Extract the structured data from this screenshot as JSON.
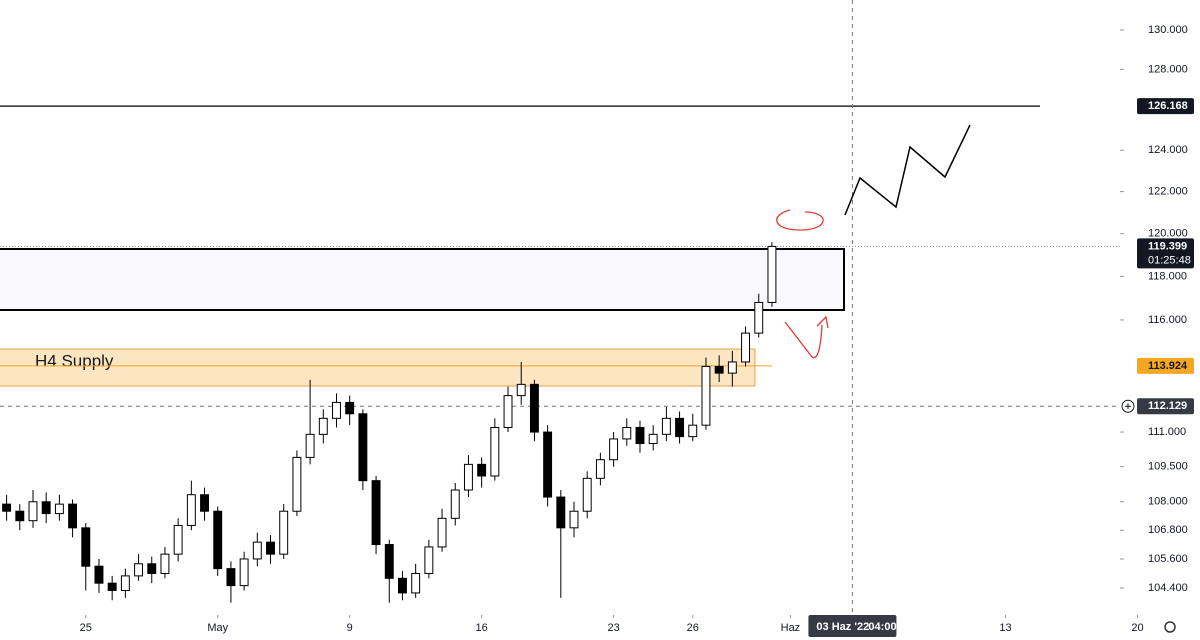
{
  "chart_data": {
    "type": "candlestick",
    "annotation": "H4 Supply",
    "up_color": "#ffffff",
    "down_color": "#000000",
    "open": [
      107.9,
      107.6,
      107.2,
      108.0,
      107.5,
      107.9,
      106.9,
      105.3,
      104.6,
      104.3,
      104.9,
      105.4,
      105.0,
      105.8,
      107.0,
      108.3,
      107.6,
      105.2,
      104.5,
      105.6,
      106.3,
      105.8,
      107.6,
      109.9,
      110.9,
      111.6,
      112.3,
      111.8,
      108.9,
      106.2,
      104.8,
      104.2,
      105.0,
      106.1,
      107.3,
      108.5,
      109.6,
      109.1,
      111.2,
      112.6,
      113.1,
      111.0,
      108.2,
      106.9,
      107.6,
      109.0,
      109.8,
      110.7,
      111.2,
      110.5,
      110.9,
      111.6,
      110.8,
      111.3,
      113.9,
      113.6,
      114.1,
      115.4,
      116.8
    ],
    "high": [
      108.3,
      107.9,
      108.5,
      108.4,
      108.3,
      108.1,
      107.1,
      105.6,
      104.9,
      105.2,
      105.8,
      105.7,
      106.1,
      107.3,
      108.9,
      108.6,
      107.8,
      105.5,
      105.9,
      106.7,
      106.6,
      107.9,
      110.2,
      113.3,
      112.0,
      112.7,
      112.6,
      112.0,
      109.1,
      106.4,
      105.1,
      105.4,
      106.4,
      107.7,
      108.8,
      110.0,
      109.9,
      111.6,
      113.0,
      114.1,
      113.3,
      111.3,
      108.5,
      108.0,
      109.3,
      110.1,
      111.0,
      111.6,
      111.5,
      111.3,
      112.1,
      111.9,
      111.8,
      114.3,
      114.4,
      114.6,
      115.7,
      117.2,
      119.6
    ],
    "low": [
      107.2,
      106.8,
      106.9,
      107.1,
      107.2,
      106.5,
      104.3,
      104.2,
      103.9,
      104.0,
      104.7,
      104.6,
      104.8,
      105.5,
      106.8,
      107.2,
      104.9,
      103.8,
      104.3,
      105.3,
      105.4,
      105.6,
      107.4,
      109.6,
      110.5,
      111.2,
      111.3,
      108.5,
      105.8,
      103.8,
      103.9,
      104.0,
      104.8,
      105.9,
      107.0,
      108.2,
      108.6,
      108.9,
      111.0,
      112.2,
      110.6,
      107.8,
      104.0,
      106.5,
      107.3,
      108.7,
      109.5,
      110.4,
      110.1,
      110.2,
      110.6,
      110.5,
      110.6,
      111.1,
      113.2,
      113.0,
      113.9,
      115.2,
      116.6
    ],
    "close": [
      107.6,
      107.2,
      108.0,
      107.5,
      107.9,
      106.9,
      105.3,
      104.6,
      104.3,
      104.9,
      105.4,
      105.0,
      105.8,
      107.0,
      108.3,
      107.6,
      105.2,
      104.5,
      105.6,
      106.3,
      105.8,
      107.6,
      109.9,
      110.9,
      111.6,
      112.3,
      111.8,
      108.9,
      106.2,
      104.8,
      104.2,
      105.0,
      106.1,
      107.3,
      108.5,
      109.6,
      109.1,
      111.2,
      112.6,
      113.1,
      111.0,
      108.2,
      106.9,
      107.6,
      109.0,
      109.8,
      110.7,
      111.2,
      110.5,
      110.9,
      111.6,
      110.8,
      111.3,
      113.9,
      113.6,
      114.1,
      115.4,
      116.8,
      119.399
    ],
    "countdown": "01:25:48",
    "log": true,
    "xlim": [
      -0.5,
      90.44
    ],
    "xticks": [
      {
        "value": 6,
        "label": "25"
      },
      {
        "value": 16,
        "label": "May"
      },
      {
        "value": 26,
        "label": "9"
      },
      {
        "value": 36,
        "label": "16"
      },
      {
        "value": 46,
        "label": "23"
      },
      {
        "value": 52,
        "label": "26"
      },
      {
        "value": 59.4,
        "label": "Haz"
      },
      {
        "value": 75.7,
        "label": "13"
      },
      {
        "value": 85.7,
        "label": "20"
      }
    ],
    "ylim": [
      103.3,
      131.54
    ],
    "yticks": [
      {
        "value": 104.4,
        "label": "104.400"
      },
      {
        "value": 105.6,
        "label": "105.600"
      },
      {
        "value": 106.8,
        "label": "106.800"
      },
      {
        "value": 108,
        "label": "108.000"
      },
      {
        "value": 109.5,
        "label": "109.500"
      },
      {
        "value": 111,
        "label": "111.000"
      },
      {
        "value": 116,
        "label": "116.000"
      },
      {
        "value": 118,
        "label": "118.000"
      },
      {
        "value": 120,
        "label": "120.000"
      },
      {
        "value": 122,
        "label": "122.000"
      },
      {
        "value": 124,
        "label": "124.000"
      },
      {
        "value": 128,
        "label": "128.000"
      },
      {
        "value": 130,
        "label": "130.000"
      }
    ],
    "horizontal_line": 126.168,
    "zone_line": 113.924,
    "zone_color": "#f5a623",
    "crosshair": {
      "x": 64.1,
      "y": 112.129,
      "x_label": "03 Haz '22",
      "time_label": "04:00"
    }
  }
}
